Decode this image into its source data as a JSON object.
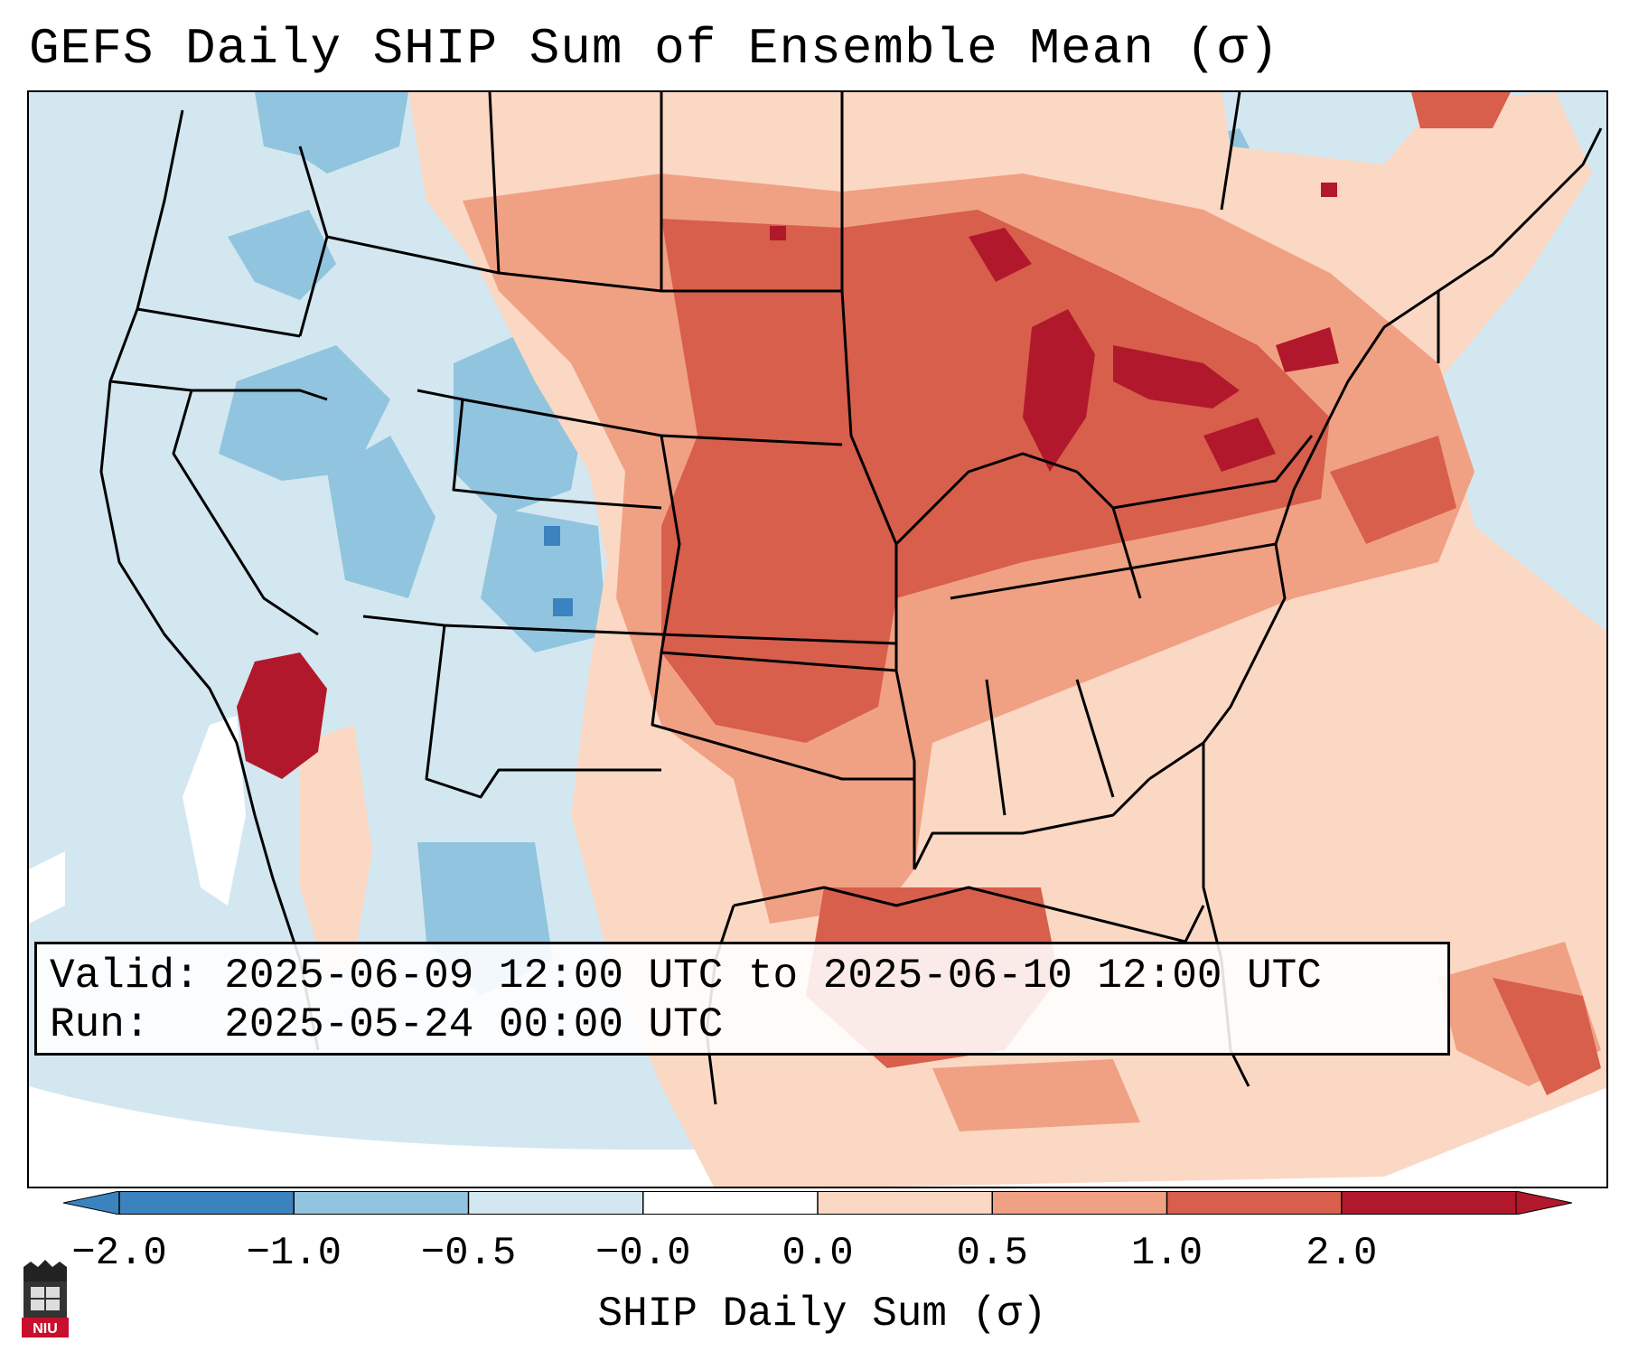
{
  "title": "GEFS Daily SHIP Sum of Ensemble Mean (σ)",
  "info": {
    "valid_label": "Valid:",
    "valid_value": "2025-06-09 12:00 UTC to 2025-06-10 12:00 UTC",
    "run_label": "Run:",
    "run_value": "2025-05-24 00:00 UTC"
  },
  "colorbar": {
    "label": "SHIP Daily Sum (σ)",
    "ticks": [
      "−2.0",
      "−1.0",
      "−0.5",
      "−0.0",
      "0.0",
      "0.5",
      "1.0",
      "2.0"
    ],
    "colors": [
      "#3b83bf",
      "#91c4de",
      "#d3e7f1",
      "#ffffff",
      "#fbd8c4",
      "#f0a183",
      "#d75f4c",
      "#b2182b"
    ],
    "extend": "both"
  },
  "logo": {
    "text": "NIU"
  },
  "map_regions": {
    "legend_colors": {
      "strong_neg": "#3b83bf",
      "neg": "#91c4de",
      "weak_neg": "#d3e7f1",
      "neutral": "#ffffff",
      "weak_pos": "#fbd8c4",
      "pos": "#f0a183",
      "strong_pos": "#d75f4c",
      "max_pos": "#b2182b"
    }
  }
}
